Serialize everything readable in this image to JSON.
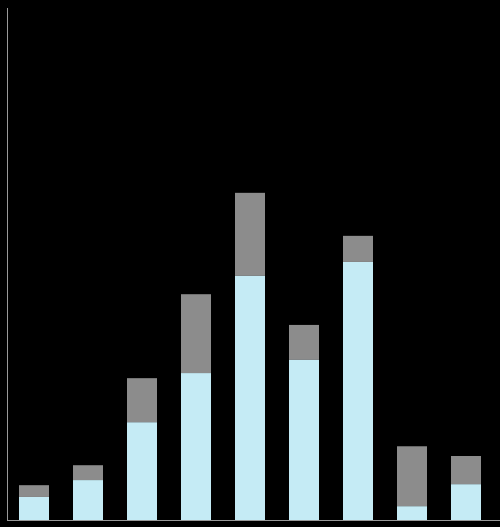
{
  "chart_data": {
    "type": "stacked-bar",
    "categories": [
      null,
      null,
      null,
      null,
      null,
      null,
      null,
      null,
      null
    ],
    "series": [
      {
        "color": "#c5ebf5",
        "values": [
          4.5,
          7.8,
          19.1,
          28.7,
          47.7,
          31.3,
          50.4,
          2.7,
          7.0
        ]
      },
      {
        "color": "#8c8c8c",
        "values": [
          2.3,
          2.9,
          8.6,
          15.4,
          16.2,
          6.8,
          5.1,
          11.7,
          5.5
        ]
      }
    ],
    "ylim": [
      0,
      100
    ]
  }
}
